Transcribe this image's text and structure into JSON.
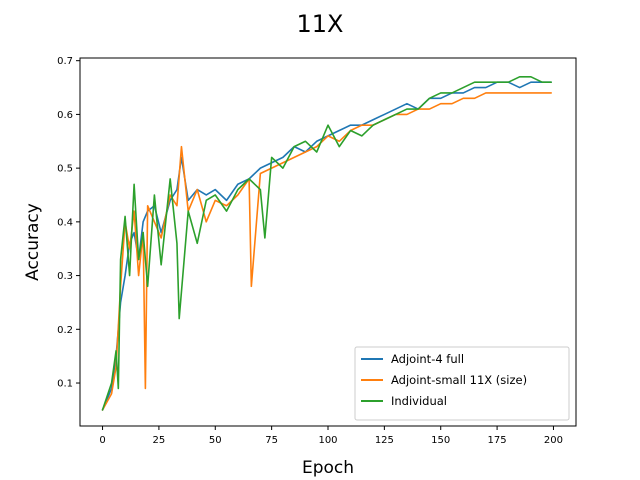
{
  "chart_data": {
    "type": "line",
    "title": "11X",
    "xlabel": "Epoch",
    "ylabel": "Accuracy",
    "xlim": [
      -10,
      210
    ],
    "ylim": [
      0.02,
      0.705
    ],
    "xticks": [
      0,
      25,
      50,
      75,
      100,
      125,
      150,
      175,
      200
    ],
    "yticks": [
      0.1,
      0.2,
      0.3,
      0.4,
      0.5,
      0.6,
      0.7
    ],
    "grid": false,
    "legend_position": "bottom-right",
    "series": [
      {
        "name": "Adjoint-4 full",
        "color": "#1f77b4",
        "x": [
          0,
          4,
          6,
          8,
          10,
          12,
          14,
          16,
          18,
          20,
          23,
          26,
          30,
          33,
          35,
          38,
          42,
          46,
          50,
          55,
          60,
          65,
          70,
          75,
          80,
          85,
          90,
          95,
          100,
          105,
          110,
          115,
          120,
          125,
          130,
          135,
          140,
          145,
          150,
          155,
          160,
          165,
          170,
          175,
          180,
          185,
          190,
          195,
          199
        ],
        "y": [
          0.05,
          0.09,
          0.15,
          0.25,
          0.3,
          0.36,
          0.38,
          0.33,
          0.4,
          0.42,
          0.43,
          0.38,
          0.44,
          0.46,
          0.52,
          0.44,
          0.46,
          0.45,
          0.46,
          0.44,
          0.47,
          0.48,
          0.5,
          0.51,
          0.52,
          0.54,
          0.53,
          0.55,
          0.56,
          0.57,
          0.58,
          0.58,
          0.59,
          0.6,
          0.61,
          0.62,
          0.61,
          0.63,
          0.63,
          0.64,
          0.64,
          0.65,
          0.65,
          0.66,
          0.66,
          0.65,
          0.66,
          0.66,
          0.66
        ]
      },
      {
        "name": "Adjoint-small 11X (size)",
        "color": "#ff7f0e",
        "x": [
          0,
          4,
          6,
          8,
          10,
          12,
          14,
          16,
          18,
          19,
          20,
          23,
          26,
          30,
          33,
          35,
          38,
          42,
          46,
          50,
          55,
          60,
          65,
          66,
          70,
          75,
          80,
          85,
          90,
          95,
          100,
          105,
          110,
          115,
          120,
          125,
          130,
          135,
          140,
          145,
          150,
          155,
          160,
          165,
          170,
          175,
          180,
          185,
          190,
          195,
          199
        ],
        "y": [
          0.05,
          0.08,
          0.13,
          0.28,
          0.4,
          0.35,
          0.42,
          0.3,
          0.38,
          0.09,
          0.43,
          0.4,
          0.37,
          0.45,
          0.43,
          0.54,
          0.42,
          0.46,
          0.4,
          0.44,
          0.43,
          0.45,
          0.48,
          0.28,
          0.49,
          0.5,
          0.51,
          0.52,
          0.53,
          0.54,
          0.56,
          0.55,
          0.57,
          0.58,
          0.58,
          0.59,
          0.6,
          0.6,
          0.61,
          0.61,
          0.62,
          0.62,
          0.63,
          0.63,
          0.64,
          0.64,
          0.64,
          0.64,
          0.64,
          0.64,
          0.64
        ]
      },
      {
        "name": "Individual",
        "color": "#2ca02c",
        "x": [
          0,
          4,
          6,
          7,
          8,
          10,
          12,
          14,
          16,
          18,
          20,
          23,
          26,
          30,
          33,
          34,
          38,
          42,
          46,
          50,
          55,
          60,
          65,
          70,
          72,
          75,
          80,
          85,
          90,
          95,
          100,
          105,
          110,
          115,
          120,
          125,
          130,
          135,
          140,
          145,
          150,
          155,
          160,
          165,
          170,
          175,
          180,
          185,
          190,
          195,
          199
        ],
        "y": [
          0.05,
          0.1,
          0.16,
          0.09,
          0.33,
          0.41,
          0.3,
          0.47,
          0.33,
          0.38,
          0.28,
          0.45,
          0.32,
          0.48,
          0.36,
          0.22,
          0.42,
          0.36,
          0.44,
          0.45,
          0.42,
          0.46,
          0.48,
          0.46,
          0.37,
          0.52,
          0.5,
          0.54,
          0.55,
          0.53,
          0.58,
          0.54,
          0.57,
          0.56,
          0.58,
          0.59,
          0.6,
          0.61,
          0.61,
          0.63,
          0.64,
          0.64,
          0.65,
          0.66,
          0.66,
          0.66,
          0.66,
          0.67,
          0.67,
          0.66,
          0.66
        ]
      }
    ]
  }
}
